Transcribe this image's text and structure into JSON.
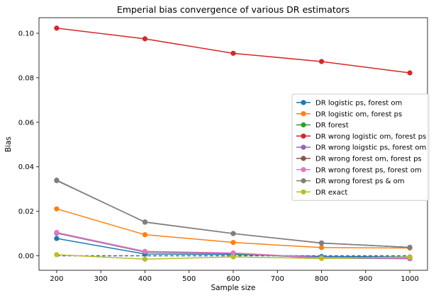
{
  "chart_data": {
    "type": "line",
    "title": "Emperial bias convergence of various DR estimators",
    "xlabel": "Sample size",
    "ylabel": "Bias",
    "xlim": [
      160,
      1040
    ],
    "ylim": [
      -0.0065,
      0.107
    ],
    "x_ticks": [
      200,
      300,
      400,
      500,
      600,
      700,
      800,
      900,
      1000
    ],
    "y_ticks": [
      0.0,
      0.02,
      0.04,
      0.06,
      0.08,
      0.1
    ],
    "x_tick_labels": [
      "200",
      "300",
      "400",
      "500",
      "600",
      "700",
      "800",
      "900",
      "1000"
    ],
    "y_tick_labels": [
      "0.00",
      "0.02",
      "0.04",
      "0.06",
      "0.08",
      "0.10"
    ],
    "grid": false,
    "legend_position": "center-right",
    "x": [
      200,
      400,
      600,
      800,
      1000
    ],
    "reference_line": {
      "y": 0.0,
      "style": "dashed",
      "color": "#1f77b4"
    },
    "series": [
      {
        "name": "DR logistic ps, forest om",
        "color": "#1f77b4",
        "values": [
          0.0078,
          0.0008,
          0.0006,
          -0.0003,
          -0.0005
        ]
      },
      {
        "name": "DR logistic om, forest ps",
        "color": "#ff7f0e",
        "values": [
          0.0211,
          0.0095,
          0.006,
          0.0037,
          0.0035
        ]
      },
      {
        "name": "DR forest",
        "color": "#2ca02c",
        "values": [
          0.0102,
          0.0017,
          0.001,
          -0.001,
          -0.0012
        ]
      },
      {
        "name": "DR wrong logistic om, forest ps",
        "color": "#d62728",
        "values": [
          0.1023,
          0.0975,
          0.091,
          0.0873,
          0.0822
        ]
      },
      {
        "name": "DR wrong loigstic ps, forest om",
        "color": "#9467bd",
        "values": [
          0.0102,
          0.0018,
          0.0012,
          -0.001,
          -0.0013
        ]
      },
      {
        "name": "DR wrong forest om, forest ps",
        "color": "#8c564b",
        "values": [
          0.0338,
          0.0152,
          0.01,
          0.0057,
          0.0038
        ]
      },
      {
        "name": "DR wrong forest ps, forest om",
        "color": "#e377c2",
        "values": [
          0.0105,
          0.002,
          0.0013,
          -0.0008,
          -0.001
        ]
      },
      {
        "name": "DR wrong forest ps & om",
        "color": "#7f7f7f",
        "values": [
          0.034,
          0.0151,
          0.01,
          0.0058,
          0.0038
        ]
      },
      {
        "name": "DR exact",
        "color": "#bcbd22",
        "values": [
          0.0005,
          -0.0015,
          -0.0005,
          -0.0012,
          -0.0005
        ]
      }
    ]
  }
}
